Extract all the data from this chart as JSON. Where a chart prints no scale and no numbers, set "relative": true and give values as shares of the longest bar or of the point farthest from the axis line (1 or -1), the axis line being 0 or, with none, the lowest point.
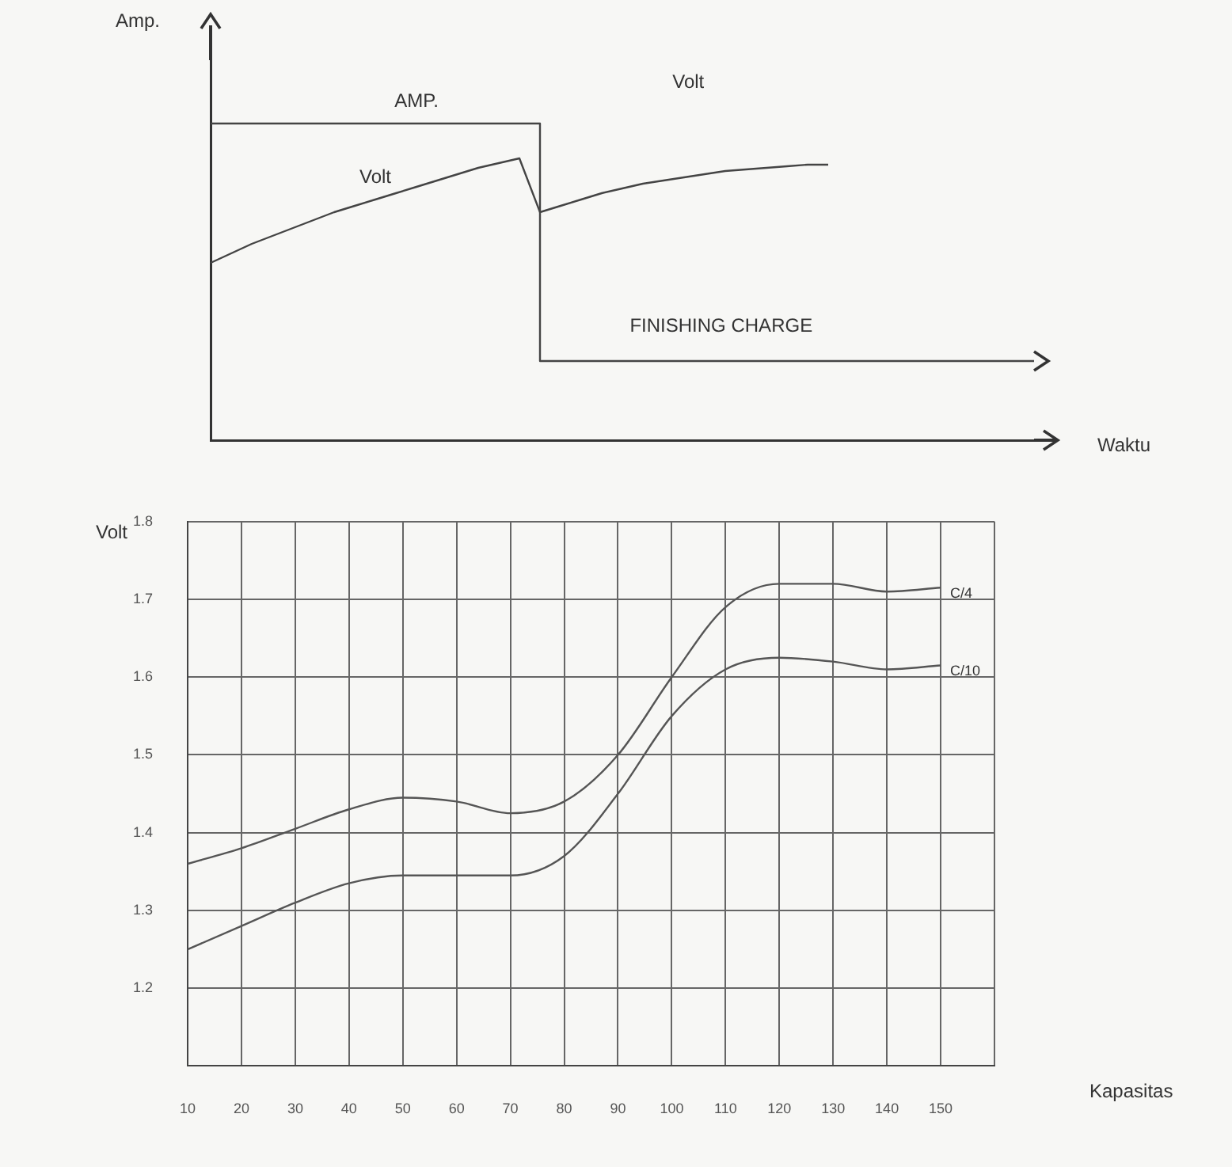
{
  "chart_data": [
    {
      "type": "line",
      "relative": true,
      "xlabel": "Waktu",
      "ylabel": "Amp.",
      "categories": [
        null,
        null,
        null,
        null,
        null,
        null,
        null,
        null,
        null,
        null,
        null,
        null,
        null,
        null,
        null,
        null,
        null,
        null,
        null,
        null,
        null,
        null,
        null,
        null,
        null,
        null,
        null,
        null,
        null,
        null,
        null,
        null,
        null,
        null,
        null,
        null,
        null,
        null,
        null,
        null,
        null
      ],
      "series": [
        {
          "name": "AMP.",
          "type": "step",
          "color": "#444444",
          "values": [
            1,
            1,
            1,
            1,
            1,
            1,
            1,
            1,
            1,
            1,
            1,
            1,
            1,
            1,
            1,
            1,
            0.25,
            0.25,
            0.25,
            0.25,
            0.25,
            0.25,
            0.25,
            0.25,
            0.25,
            0.25,
            0.25,
            0.25,
            0.25,
            0.25,
            0.25,
            0.25,
            0.25,
            0.25,
            0.25,
            0.25,
            0.25,
            0.25,
            0.25,
            0.25,
            0.25
          ]
        },
        {
          "name": "Volt",
          "type": "line",
          "color": "#444444",
          "values": [
            0.56,
            0.59,
            0.62,
            0.645,
            0.67,
            0.695,
            0.72,
            0.74,
            0.76,
            0.78,
            0.8,
            0.82,
            0.84,
            0.86,
            0.875,
            0.89,
            0.72,
            0.74,
            0.76,
            0.78,
            0.795,
            0.81,
            0.82,
            0.83,
            0.84,
            0.85,
            0.855,
            0.86,
            0.865,
            0.87,
            0.87,
            null,
            null,
            null,
            null,
            null,
            null,
            null,
            null,
            null,
            null
          ]
        }
      ],
      "annotations": [
        "Volt",
        "FINISHING CHARGE"
      ],
      "legend": false
    },
    {
      "type": "line",
      "xlabel": "Kapasitas",
      "ylabel": "Volt",
      "x": [
        10,
        20,
        30,
        40,
        50,
        60,
        70,
        80,
        90,
        100,
        110,
        120,
        130,
        140,
        150
      ],
      "xlim": [
        10,
        160
      ],
      "xticks": [
        10,
        20,
        30,
        40,
        50,
        60,
        70,
        80,
        90,
        100,
        110,
        120,
        130,
        140,
        150,
        {
          "value": 160,
          "label": null
        }
      ],
      "ylim": [
        1.1,
        1.8
      ],
      "yticks": [
        1.2,
        1.3,
        1.4,
        1.5,
        1.6,
        1.7,
        1.8
      ],
      "grid": true,
      "legend": false,
      "series": [
        {
          "name": "C/4",
          "color": "#555555",
          "values": [
            1.36,
            1.38,
            1.405,
            1.43,
            1.445,
            1.44,
            1.425,
            1.44,
            1.5,
            1.6,
            1.69,
            1.72,
            1.72,
            1.71,
            1.715
          ]
        },
        {
          "name": "C/10",
          "color": "#555555",
          "values": [
            1.25,
            1.28,
            1.31,
            1.335,
            1.345,
            1.345,
            1.345,
            1.37,
            1.45,
            1.55,
            1.61,
            1.625,
            1.62,
            1.61,
            1.615
          ]
        }
      ]
    }
  ]
}
